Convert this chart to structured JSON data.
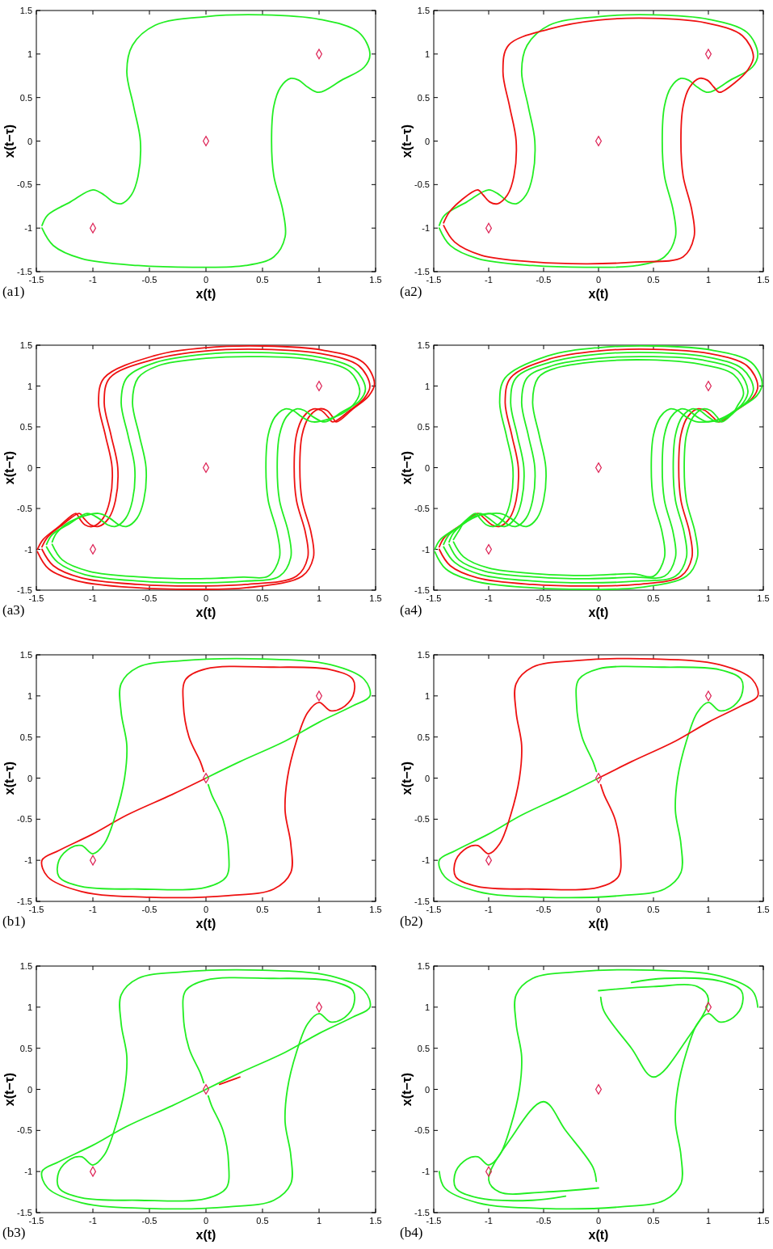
{
  "chart_data": [
    {
      "type": "line",
      "xlabel": "x(t)",
      "ylabel": "x(t−τ)",
      "annotations": [
        "(a1)"
      ],
      "xlim": [
        -1.5,
        1.5
      ],
      "ylim": [
        -1.5,
        1.5
      ],
      "xticks": [
        -1.5,
        -1,
        -0.5,
        0,
        0.5,
        1,
        1.5
      ],
      "yticks": [
        -1.5,
        -1,
        -0.5,
        0,
        0.5,
        1,
        1.5
      ],
      "series": [
        {
          "color": "#22ee22",
          "x": [
            -1.45,
            -1.35,
            -1.1,
            -0.6,
            -0.1,
            0.35,
            0.6,
            0.7,
            0.68,
            0.6,
            0.58,
            0.6,
            0.66,
            0.75,
            0.82,
            0.9,
            1.0,
            1.2,
            1.4,
            1.45,
            1.35,
            1.0,
            0.5,
            0.0,
            -0.45,
            -0.65,
            -0.7,
            -0.64,
            -0.58,
            -0.6,
            -0.66,
            -0.75,
            -0.82,
            -0.9,
            -1.0,
            -1.2,
            -1.4,
            -1.45
          ],
          "values": [
            -1.0,
            -1.2,
            -1.35,
            -1.43,
            -1.45,
            -1.43,
            -1.33,
            -1.1,
            -0.8,
            -0.4,
            0,
            0.4,
            0.62,
            0.72,
            0.7,
            0.62,
            0.56,
            0.7,
            0.85,
            1.0,
            1.25,
            1.4,
            1.45,
            1.43,
            1.33,
            1.1,
            0.8,
            0.4,
            0,
            -0.4,
            -0.62,
            -0.72,
            -0.7,
            -0.62,
            -0.56,
            -0.7,
            -0.85,
            -0.97
          ]
        },
        {
          "type": "scatter",
          "marker": "diamond",
          "color": "#dd2255",
          "x": [
            -1,
            0,
            1
          ],
          "values": [
            -1,
            0,
            1
          ]
        }
      ]
    },
    {
      "type": "line",
      "xlabel": "x(t)",
      "ylabel": "x(t−τ)",
      "annotations": [
        "(a2)"
      ],
      "xlim": [
        -1.5,
        1.5
      ],
      "ylim": [
        -1.5,
        1.5
      ],
      "xticks": [
        -1.5,
        -1,
        -0.5,
        0,
        0.5,
        1,
        1.5
      ],
      "yticks": [
        -1.5,
        -1,
        -0.5,
        0,
        0.5,
        1,
        1.5
      ],
      "series": [
        {
          "color": "#22ee22",
          "x": [
            -1.45,
            -1.35,
            -1.1,
            -0.6,
            -0.1,
            0.35,
            0.6,
            0.7,
            0.68,
            0.6,
            0.58,
            0.6,
            0.66,
            0.75,
            0.82,
            0.9,
            1.0,
            1.2,
            1.4,
            1.45,
            1.35,
            1.0,
            0.5,
            0.0,
            -0.45,
            -0.65,
            -0.7,
            -0.64,
            -0.58,
            -0.6,
            -0.66,
            -0.75,
            -0.82,
            -0.9,
            -1.0,
            -1.2,
            -1.4,
            -1.45
          ],
          "values": [
            -1.0,
            -1.2,
            -1.35,
            -1.43,
            -1.45,
            -1.43,
            -1.33,
            -1.1,
            -0.8,
            -0.4,
            0,
            0.4,
            0.62,
            0.72,
            0.7,
            0.62,
            0.56,
            0.7,
            0.85,
            1.0,
            1.25,
            1.4,
            1.45,
            1.43,
            1.33,
            1.1,
            0.8,
            0.4,
            0,
            -0.4,
            -0.62,
            -0.72,
            -0.7,
            -0.62,
            -0.56,
            -0.7,
            -0.85,
            -0.97
          ]
        },
        {
          "color": "#ee1111",
          "x": [
            -1.41,
            -1.31,
            -1.07,
            -0.58,
            -0.1,
            0.34,
            0.77,
            0.87,
            0.85,
            0.77,
            0.75,
            0.77,
            0.83,
            0.92,
            0.99,
            1.05,
            1.1,
            1.25,
            1.36,
            1.41,
            1.31,
            0.97,
            0.49,
            0.0,
            -0.44,
            -0.82,
            -0.87,
            -0.81,
            -0.75,
            -0.77,
            -0.83,
            -0.92,
            -0.99,
            -1.05,
            -1.1,
            -1.25,
            -1.36,
            -1.41
          ],
          "values": [
            -0.97,
            -1.16,
            -1.31,
            -1.39,
            -1.41,
            -1.39,
            -1.33,
            -1.1,
            -0.8,
            -0.4,
            0,
            0.4,
            0.62,
            0.72,
            0.7,
            0.62,
            0.56,
            0.68,
            0.82,
            0.97,
            1.21,
            1.36,
            1.41,
            1.39,
            1.29,
            1.1,
            0.8,
            0.4,
            0,
            -0.4,
            -0.62,
            -0.72,
            -0.7,
            -0.62,
            -0.56,
            -0.68,
            -0.82,
            -0.94
          ]
        },
        {
          "type": "scatter",
          "marker": "diamond",
          "color": "#dd2255",
          "x": [
            -1,
            0,
            1
          ],
          "values": [
            -1,
            0,
            1
          ]
        }
      ]
    },
    {
      "type": "line",
      "xlabel": "x(t)",
      "ylabel": "x(t−τ)",
      "annotations": [
        "(a3)"
      ],
      "xlim": [
        -1.5,
        1.5
      ],
      "ylim": [
        -1.5,
        1.5
      ],
      "xticks": [
        -1.5,
        -1,
        -0.5,
        0,
        0.5,
        1,
        1.5
      ],
      "yticks": [
        -1.5,
        -1,
        -0.5,
        0,
        0.5,
        1,
        1.5
      ],
      "series": [
        {
          "color": "#ee1111",
          "x": [
            -1.45,
            -1.35,
            -1.1,
            -0.6,
            -0.1,
            0.35,
            0.8,
            0.9,
            0.88,
            0.8,
            0.78,
            0.8,
            0.86,
            0.95,
            1.02,
            1.08,
            1.12,
            1.27,
            1.4,
            1.45,
            1.35,
            1.0,
            0.5,
            0.0,
            -0.45,
            -0.85,
            -0.9,
            -0.84,
            -0.78,
            -0.8,
            -0.86,
            -0.95,
            -1.02,
            -1.08,
            -1.12,
            -1.27,
            -1.4,
            -1.45
          ],
          "values": [
            -1.0,
            -1.2,
            -1.35,
            -1.43,
            -1.45,
            -1.43,
            -1.33,
            -1.1,
            -0.8,
            -0.4,
            0,
            0.4,
            0.62,
            0.72,
            0.7,
            0.62,
            0.56,
            0.7,
            0.85,
            1.0,
            1.25,
            1.4,
            1.45,
            1.43,
            1.33,
            1.1,
            0.8,
            0.4,
            0,
            -0.4,
            -0.62,
            -0.72,
            -0.7,
            -0.62,
            -0.56,
            -0.7,
            -0.85,
            -0.97
          ]
        },
        {
          "color": "#ee1111",
          "x": [
            -1.49,
            -1.39,
            -1.13,
            -0.62,
            -0.1,
            0.36,
            0.85,
            0.95,
            0.93,
            0.85,
            0.83,
            0.85,
            0.91,
            1.0,
            1.07,
            1.12,
            1.15,
            1.3,
            1.44,
            1.49,
            1.39,
            1.03,
            0.52,
            0.0,
            -0.46,
            -0.9,
            -0.95,
            -0.89,
            -0.83,
            -0.85,
            -0.91,
            -1.0,
            -1.07,
            -1.12,
            -1.15,
            -1.3,
            -1.44,
            -1.49
          ],
          "values": [
            -1.03,
            -1.24,
            -1.39,
            -1.47,
            -1.49,
            -1.47,
            -1.33,
            -1.1,
            -0.8,
            -0.4,
            0,
            0.4,
            0.62,
            0.72,
            0.7,
            0.62,
            0.56,
            0.72,
            0.88,
            1.03,
            1.29,
            1.44,
            1.49,
            1.47,
            1.37,
            1.1,
            0.8,
            0.4,
            0,
            -0.4,
            -0.62,
            -0.72,
            -0.7,
            -0.62,
            -0.56,
            -0.72,
            -0.88,
            -1.0
          ]
        },
        {
          "color": "#22ee22",
          "x": [
            -1.36,
            -1.27,
            -1.03,
            -0.56,
            -0.09,
            0.33,
            0.55,
            0.65,
            0.63,
            0.55,
            0.53,
            0.55,
            0.61,
            0.7,
            0.77,
            0.85,
            0.95,
            1.2,
            1.32,
            1.36,
            1.27,
            0.94,
            0.47,
            0.0,
            -0.42,
            -0.6,
            -0.65,
            -0.59,
            -0.53,
            -0.55,
            -0.61,
            -0.7,
            -0.77,
            -0.85,
            -0.95,
            -1.2,
            -1.32,
            -1.36
          ],
          "values": [
            -0.94,
            -1.13,
            -1.27,
            -1.34,
            -1.36,
            -1.34,
            -1.33,
            -1.1,
            -0.8,
            -0.4,
            0,
            0.4,
            0.62,
            0.72,
            0.7,
            0.62,
            0.56,
            0.66,
            0.8,
            0.94,
            1.18,
            1.32,
            1.36,
            1.34,
            1.25,
            1.1,
            0.8,
            0.4,
            0,
            -0.4,
            -0.62,
            -0.72,
            -0.7,
            -0.62,
            -0.56,
            -0.66,
            -0.8,
            -0.91
          ]
        },
        {
          "color": "#22ee22",
          "x": [
            -1.41,
            -1.31,
            -1.07,
            -0.58,
            -0.1,
            0.34,
            0.65,
            0.75,
            0.73,
            0.65,
            0.63,
            0.65,
            0.71,
            0.8,
            0.87,
            0.95,
            1.05,
            1.2,
            1.36,
            1.41,
            1.31,
            0.97,
            0.49,
            0.0,
            -0.44,
            -0.7,
            -0.75,
            -0.69,
            -0.63,
            -0.65,
            -0.71,
            -0.8,
            -0.87,
            -0.95,
            -1.05,
            -1.2,
            -1.36,
            -1.41
          ],
          "values": [
            -0.97,
            -1.16,
            -1.31,
            -1.39,
            -1.41,
            -1.39,
            -1.33,
            -1.1,
            -0.8,
            -0.4,
            0,
            0.4,
            0.62,
            0.72,
            0.7,
            0.62,
            0.56,
            0.68,
            0.82,
            0.97,
            1.21,
            1.36,
            1.41,
            1.39,
            1.29,
            1.1,
            0.8,
            0.4,
            0,
            -0.4,
            -0.62,
            -0.72,
            -0.7,
            -0.62,
            -0.56,
            -0.68,
            -0.82,
            -0.94
          ]
        },
        {
          "type": "scatter",
          "marker": "diamond",
          "color": "#dd2255",
          "x": [
            -1,
            0,
            1
          ],
          "values": [
            -1,
            0,
            1
          ]
        }
      ]
    },
    {
      "type": "line",
      "xlabel": "x(t)",
      "ylabel": "x(t−τ)",
      "annotations": [
        "(a4)"
      ],
      "xlim": [
        -1.5,
        1.5
      ],
      "ylim": [
        -1.5,
        1.5
      ],
      "xticks": [
        -1.5,
        -1,
        -0.5,
        0,
        0.5,
        1,
        1.5
      ],
      "yticks": [
        -1.5,
        -1,
        -0.5,
        0,
        0.5,
        1,
        1.5
      ],
      "series": [
        {
          "color": "#ee1111",
          "x": [
            -1.45,
            -1.35,
            -1.1,
            -0.6,
            -0.1,
            0.35,
            0.75,
            0.85,
            0.83,
            0.75,
            0.73,
            0.75,
            0.81,
            0.9,
            0.97,
            1.04,
            1.1,
            1.25,
            1.4,
            1.45,
            1.35,
            1.0,
            0.5,
            0.0,
            -0.45,
            -0.8,
            -0.85,
            -0.79,
            -0.73,
            -0.75,
            -0.81,
            -0.9,
            -0.97,
            -1.04,
            -1.1,
            -1.25,
            -1.4,
            -1.45
          ],
          "values": [
            -1.0,
            -1.2,
            -1.35,
            -1.43,
            -1.45,
            -1.43,
            -1.33,
            -1.1,
            -0.8,
            -0.4,
            0,
            0.4,
            0.62,
            0.72,
            0.7,
            0.62,
            0.56,
            0.7,
            0.85,
            1.0,
            1.25,
            1.4,
            1.45,
            1.43,
            1.33,
            1.1,
            0.8,
            0.4,
            0,
            -0.4,
            -0.62,
            -0.72,
            -0.7,
            -0.62,
            -0.56,
            -0.7,
            -0.85,
            -0.97
          ]
        },
        {
          "color": "#22ee22",
          "x": [
            -1.32,
            -1.23,
            -1.0,
            -0.55,
            -0.09,
            0.32,
            0.5,
            0.6,
            0.58,
            0.5,
            0.48,
            0.5,
            0.56,
            0.65,
            0.72,
            0.8,
            0.9,
            1.2,
            1.27,
            1.32,
            1.23,
            0.91,
            0.46,
            0.0,
            -0.41,
            -0.55,
            -0.6,
            -0.54,
            -0.48,
            -0.5,
            -0.56,
            -0.65,
            -0.72,
            -0.8,
            -0.9,
            -1.2,
            -1.27,
            -1.32
          ],
          "values": [
            -0.91,
            -1.09,
            -1.23,
            -1.3,
            -1.32,
            -1.3,
            -1.33,
            -1.1,
            -0.8,
            -0.4,
            0,
            0.4,
            0.62,
            0.72,
            0.7,
            0.62,
            0.56,
            0.64,
            0.77,
            0.91,
            1.14,
            1.27,
            1.32,
            1.3,
            1.21,
            1.1,
            0.8,
            0.4,
            0,
            -0.4,
            -0.62,
            -0.72,
            -0.7,
            -0.62,
            -0.56,
            -0.64,
            -0.77,
            -0.88
          ]
        },
        {
          "color": "#22ee22",
          "x": [
            -1.36,
            -1.27,
            -1.03,
            -0.56,
            -0.09,
            0.33,
            0.6,
            0.7,
            0.68,
            0.6,
            0.58,
            0.6,
            0.66,
            0.75,
            0.82,
            0.9,
            1.0,
            1.2,
            1.32,
            1.36,
            1.27,
            0.94,
            0.47,
            0.0,
            -0.42,
            -0.65,
            -0.7,
            -0.64,
            -0.58,
            -0.6,
            -0.66,
            -0.75,
            -0.82,
            -0.9,
            -1.0,
            -1.2,
            -1.32,
            -1.36
          ],
          "values": [
            -0.94,
            -1.13,
            -1.27,
            -1.34,
            -1.36,
            -1.34,
            -1.33,
            -1.1,
            -0.8,
            -0.4,
            0,
            0.4,
            0.62,
            0.72,
            0.7,
            0.62,
            0.56,
            0.66,
            0.8,
            0.94,
            1.18,
            1.32,
            1.36,
            1.34,
            1.25,
            1.1,
            0.8,
            0.4,
            0,
            -0.4,
            -0.62,
            -0.72,
            -0.7,
            -0.62,
            -0.56,
            -0.66,
            -0.8,
            -0.91
          ]
        },
        {
          "color": "#22ee22",
          "x": [
            -1.41,
            -1.31,
            -1.07,
            -0.58,
            -0.1,
            0.34,
            0.7,
            0.8,
            0.78,
            0.7,
            0.68,
            0.7,
            0.76,
            0.85,
            0.92,
            1.0,
            1.08,
            1.22,
            1.36,
            1.41,
            1.31,
            0.97,
            0.49,
            0.0,
            -0.44,
            -0.75,
            -0.8,
            -0.74,
            -0.68,
            -0.7,
            -0.76,
            -0.85,
            -0.92,
            -1.0,
            -1.08,
            -1.22,
            -1.36,
            -1.41
          ],
          "values": [
            -0.97,
            -1.16,
            -1.31,
            -1.39,
            -1.41,
            -1.39,
            -1.33,
            -1.1,
            -0.8,
            -0.4,
            0,
            0.4,
            0.62,
            0.72,
            0.7,
            0.62,
            0.56,
            0.68,
            0.82,
            0.97,
            1.21,
            1.36,
            1.41,
            1.39,
            1.29,
            1.1,
            0.8,
            0.4,
            0,
            -0.4,
            -0.62,
            -0.72,
            -0.7,
            -0.62,
            -0.56,
            -0.68,
            -0.82,
            -0.94
          ]
        },
        {
          "color": "#22ee22",
          "x": [
            -1.49,
            -1.39,
            -1.13,
            -0.62,
            -0.1,
            0.36,
            0.8,
            0.9,
            0.88,
            0.8,
            0.78,
            0.8,
            0.86,
            0.95,
            1.02,
            1.08,
            1.12,
            1.27,
            1.44,
            1.49,
            1.39,
            1.03,
            0.52,
            0.0,
            -0.46,
            -0.85,
            -0.9,
            -0.84,
            -0.78,
            -0.8,
            -0.86,
            -0.95,
            -1.02,
            -1.08,
            -1.12,
            -1.27,
            -1.44,
            -1.49
          ],
          "values": [
            -1.03,
            -1.24,
            -1.39,
            -1.47,
            -1.49,
            -1.47,
            -1.33,
            -1.1,
            -0.8,
            -0.4,
            0,
            0.4,
            0.62,
            0.72,
            0.7,
            0.62,
            0.56,
            0.72,
            0.88,
            1.03,
            1.29,
            1.44,
            1.49,
            1.47,
            1.37,
            1.1,
            0.8,
            0.4,
            0,
            -0.4,
            -0.62,
            -0.72,
            -0.7,
            -0.62,
            -0.56,
            -0.72,
            -0.88,
            -1.0
          ]
        },
        {
          "type": "scatter",
          "marker": "diamond",
          "color": "#dd2255",
          "x": [
            -1,
            0,
            1
          ],
          "values": [
            -1,
            0,
            1
          ]
        }
      ]
    },
    {
      "type": "line",
      "xlabel": "x(t)",
      "ylabel": "x(t−τ)",
      "annotations": [
        "(b1)"
      ],
      "xlim": [
        -1.5,
        1.5
      ],
      "ylim": [
        -1.5,
        1.5
      ],
      "xticks": [
        -1.5,
        -1,
        -0.5,
        0,
        0.5,
        1,
        1.5
      ],
      "yticks": [
        -1.5,
        -1,
        -0.5,
        0,
        0.5,
        1,
        1.5
      ],
      "series": [
        {
          "color": "#ee1111",
          "x": [
            0,
            -0.3,
            -0.7,
            -1.0,
            -1.3,
            -1.45,
            -1.4,
            -1.1,
            -0.5,
            0.2,
            0.6,
            0.75,
            0.75,
            0.7,
            0.72,
            0.8,
            0.9,
            1.0,
            1.1,
            1.2,
            1.3,
            1.3,
            1.1,
            0.6,
            0,
            -0.18,
            -0.2,
            -0.15,
            -0.05,
            -0.02
          ],
          "values": [
            0,
            -0.2,
            -0.45,
            -0.68,
            -0.88,
            -1.0,
            -1.2,
            -1.38,
            -1.45,
            -1.43,
            -1.35,
            -1.15,
            -0.8,
            -0.4,
            0,
            0.45,
            0.8,
            0.92,
            0.82,
            0.85,
            1.0,
            1.2,
            1.32,
            1.35,
            1.33,
            1.2,
            0.9,
            0.5,
            0.2,
            0.08
          ]
        },
        {
          "color": "#22ee22",
          "x": [
            0,
            0.3,
            0.7,
            1.0,
            1.3,
            1.45,
            1.4,
            1.1,
            0.5,
            -0.2,
            -0.6,
            -0.75,
            -0.75,
            -0.7,
            -0.72,
            -0.8,
            -0.9,
            -1.0,
            -1.1,
            -1.2,
            -1.3,
            -1.3,
            -1.1,
            -0.6,
            0,
            0.18,
            0.2,
            0.15,
            0.05,
            0.02
          ],
          "values": [
            0,
            0.2,
            0.45,
            0.68,
            0.88,
            1.0,
            1.2,
            1.38,
            1.45,
            1.43,
            1.35,
            1.15,
            0.8,
            0.4,
            0,
            -0.45,
            -0.8,
            -0.92,
            -0.82,
            -0.85,
            -1.0,
            -1.2,
            -1.32,
            -1.35,
            -1.33,
            -1.2,
            -0.9,
            -0.5,
            -0.2,
            -0.08
          ]
        },
        {
          "type": "scatter",
          "marker": "diamond",
          "color": "#dd2255",
          "x": [
            -1,
            0,
            1
          ],
          "values": [
            -1,
            0,
            1
          ]
        }
      ]
    },
    {
      "type": "line",
      "xlabel": "x(t)",
      "ylabel": "x(t−τ)",
      "annotations": [
        "(b2)"
      ],
      "xlim": [
        -1.5,
        1.5
      ],
      "ylim": [
        -1.5,
        1.5
      ],
      "xticks": [
        -1.5,
        -1,
        -0.5,
        0,
        0.5,
        1,
        1.5
      ],
      "yticks": [
        -1.5,
        -1,
        -0.5,
        0,
        0.5,
        1,
        1.5
      ],
      "series": [
        {
          "color": "#22ee22",
          "x": [
            0,
            -0.3,
            -0.7,
            -1.0,
            -1.3,
            -1.45,
            -1.4,
            -1.1,
            -0.5,
            0.2,
            0.6,
            0.75,
            0.75,
            0.7,
            0.72,
            0.8,
            0.9,
            1.0,
            1.1,
            1.2,
            1.3,
            1.3,
            1.1,
            0.6,
            0,
            -0.18,
            -0.2,
            -0.15,
            -0.05,
            -0.02
          ],
          "values": [
            0,
            -0.2,
            -0.45,
            -0.68,
            -0.88,
            -1.0,
            -1.2,
            -1.38,
            -1.45,
            -1.43,
            -1.35,
            -1.15,
            -0.8,
            -0.4,
            0,
            0.45,
            0.8,
            0.92,
            0.82,
            0.85,
            1.0,
            1.2,
            1.32,
            1.35,
            1.33,
            1.2,
            0.9,
            0.5,
            0.2,
            0.08
          ]
        },
        {
          "color": "#ee1111",
          "x": [
            0,
            0.3,
            0.7,
            1.0,
            1.3,
            1.45,
            1.4,
            1.1,
            0.5,
            -0.2,
            -0.6,
            -0.75,
            -0.75,
            -0.7,
            -0.72,
            -0.8,
            -0.9,
            -1.0,
            -1.1,
            -1.2,
            -1.3,
            -1.3,
            -1.1,
            -0.6,
            0,
            0.18,
            0.2,
            0.15,
            0.05,
            0.02
          ],
          "values": [
            0,
            0.2,
            0.45,
            0.68,
            0.88,
            1.0,
            1.2,
            1.38,
            1.45,
            1.43,
            1.35,
            1.15,
            0.8,
            0.4,
            0,
            -0.45,
            -0.8,
            -0.92,
            -0.82,
            -0.85,
            -1.0,
            -1.2,
            -1.32,
            -1.35,
            -1.33,
            -1.2,
            -0.9,
            -0.5,
            -0.2,
            -0.08
          ]
        },
        {
          "type": "scatter",
          "marker": "diamond",
          "color": "#dd2255",
          "x": [
            -1,
            0,
            1
          ],
          "values": [
            -1,
            0,
            1
          ]
        }
      ]
    },
    {
      "type": "line",
      "xlabel": "x(t)",
      "ylabel": "x(t−τ)",
      "annotations": [
        "(b3)"
      ],
      "xlim": [
        -1.5,
        1.5
      ],
      "ylim": [
        -1.5,
        1.5
      ],
      "xticks": [
        -1.5,
        -1,
        -0.5,
        0,
        0.5,
        1,
        1.5
      ],
      "yticks": [
        -1.5,
        -1,
        -0.5,
        0,
        0.5,
        1,
        1.5
      ],
      "series": [
        {
          "color": "#22ee22",
          "x": [
            0,
            -0.3,
            -0.7,
            -1.0,
            -1.3,
            -1.45,
            -1.4,
            -1.1,
            -0.5,
            0.2,
            0.6,
            0.75,
            0.75,
            0.7,
            0.72,
            0.8,
            0.9,
            1.0,
            1.1,
            1.2,
            1.3,
            1.3,
            1.1,
            0.6,
            0,
            -0.18,
            -0.2,
            -0.15,
            -0.05,
            -0.02
          ],
          "values": [
            0,
            -0.2,
            -0.45,
            -0.68,
            -0.88,
            -1.0,
            -1.2,
            -1.38,
            -1.45,
            -1.43,
            -1.35,
            -1.15,
            -0.8,
            -0.4,
            0,
            0.45,
            0.8,
            0.92,
            0.82,
            0.85,
            1.0,
            1.2,
            1.32,
            1.35,
            1.33,
            1.2,
            0.9,
            0.5,
            0.2,
            0.08
          ]
        },
        {
          "color": "#22ee22",
          "x": [
            0,
            0.3,
            0.7,
            1.0,
            1.3,
            1.45,
            1.4,
            1.1,
            0.5,
            -0.2,
            -0.6,
            -0.75,
            -0.75,
            -0.7,
            -0.72,
            -0.8,
            -0.9,
            -1.0,
            -1.1,
            -1.2,
            -1.3,
            -1.3,
            -1.1,
            -0.6,
            0,
            0.18,
            0.2,
            0.15,
            0.05,
            0.02
          ],
          "values": [
            0,
            0.2,
            0.45,
            0.68,
            0.88,
            1.0,
            1.2,
            1.38,
            1.45,
            1.43,
            1.35,
            1.15,
            0.8,
            0.4,
            0,
            -0.45,
            -0.8,
            -0.92,
            -0.82,
            -0.85,
            -1.0,
            -1.2,
            -1.32,
            -1.35,
            -1.33,
            -1.2,
            -0.9,
            -0.5,
            -0.2,
            -0.08
          ]
        },
        {
          "color": "#ee1111",
          "x": [
            0.12,
            0.18,
            0.24,
            0.3
          ],
          "values": [
            0.06,
            0.09,
            0.12,
            0.15
          ]
        },
        {
          "type": "scatter",
          "marker": "diamond",
          "color": "#dd2255",
          "x": [
            -1,
            0,
            1
          ],
          "values": [
            -1,
            0,
            1
          ]
        }
      ]
    },
    {
      "type": "line",
      "xlabel": "x(t)",
      "ylabel": "x(t−τ)",
      "annotations": [
        "(b4)"
      ],
      "xlim": [
        -1.5,
        1.5
      ],
      "ylim": [
        -1.5,
        1.5
      ],
      "xticks": [
        -1.5,
        -1,
        -0.5,
        0,
        0.5,
        1,
        1.5
      ],
      "yticks": [
        -1.5,
        -1,
        -0.5,
        0,
        0.5,
        1,
        1.5
      ],
      "series": [
        {
          "color": "#22ee22",
          "x": [
            1.45,
            1.4,
            1.1,
            0.5,
            -0.2,
            -0.6,
            -0.75,
            -0.75,
            -0.7,
            -0.72,
            -0.8,
            -0.9,
            -1.0,
            -1.1,
            -1.2,
            -1.3,
            -1.3,
            -1.1,
            -0.6,
            -0.3
          ],
          "values": [
            1.0,
            1.2,
            1.38,
            1.45,
            1.43,
            1.35,
            1.15,
            0.8,
            0.4,
            0,
            -0.45,
            -0.8,
            -0.92,
            -0.82,
            -0.85,
            -1.0,
            -1.2,
            -1.32,
            -1.35,
            -1.3
          ]
        },
        {
          "color": "#22ee22",
          "x": [
            -1.45,
            -1.4,
            -1.1,
            -0.5,
            0.2,
            0.6,
            0.75,
            0.75,
            0.7,
            0.72,
            0.8,
            0.9,
            1.0,
            1.1,
            1.2,
            1.3,
            1.3,
            1.1,
            0.6,
            0.3
          ],
          "values": [
            -1.0,
            -1.2,
            -1.38,
            -1.45,
            -1.43,
            -1.35,
            -1.15,
            -0.8,
            -0.4,
            0,
            0.45,
            0.8,
            0.92,
            0.82,
            0.85,
            1.0,
            1.2,
            1.32,
            1.35,
            1.3
          ]
        },
        {
          "color": "#22ee22",
          "x": [
            0.0,
            0.5,
            0.9,
            1.0,
            0.8,
            0.5,
            0.3,
            0.05,
            0.02
          ],
          "values": [
            1.2,
            1.25,
            1.25,
            1.1,
            0.6,
            0.15,
            0.5,
            0.95,
            1.12
          ]
        },
        {
          "color": "#22ee22",
          "x": [
            0.0,
            -0.5,
            -0.9,
            -1.0,
            -0.8,
            -0.5,
            -0.3,
            -0.05,
            -0.02
          ],
          "values": [
            -1.2,
            -1.25,
            -1.25,
            -1.1,
            -0.6,
            -0.15,
            -0.5,
            -0.95,
            -1.12
          ]
        },
        {
          "type": "scatter",
          "marker": "diamond",
          "color": "#dd2255",
          "x": [
            -1,
            0,
            1
          ],
          "values": [
            -1,
            0,
            1
          ]
        }
      ]
    }
  ]
}
